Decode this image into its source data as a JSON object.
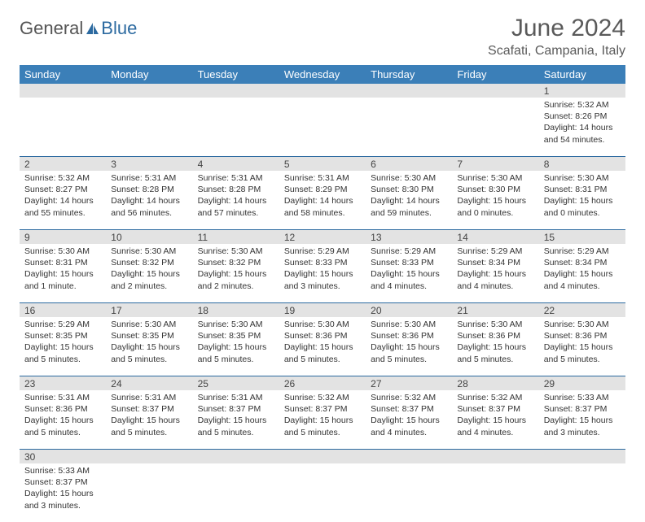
{
  "colors": {
    "header_bar": "#3b7fb8",
    "header_text": "#ffffff",
    "daynum_bg": "#e3e3e3",
    "row_border": "#2c6aa0",
    "title_color": "#5a5a5a",
    "logo_gray": "#555555",
    "logo_blue": "#2c6aa0",
    "body_text": "#333333",
    "page_bg": "#ffffff"
  },
  "logo": {
    "text1": "General",
    "text2": "Blue"
  },
  "title": "June 2024",
  "location": "Scafati, Campania, Italy",
  "weekdays": [
    "Sunday",
    "Monday",
    "Tuesday",
    "Wednesday",
    "Thursday",
    "Friday",
    "Saturday"
  ],
  "weeks": [
    [
      null,
      null,
      null,
      null,
      null,
      null,
      {
        "n": "1",
        "sr": "Sunrise: 5:32 AM",
        "ss": "Sunset: 8:26 PM",
        "d1": "Daylight: 14 hours",
        "d2": "and 54 minutes."
      }
    ],
    [
      {
        "n": "2",
        "sr": "Sunrise: 5:32 AM",
        "ss": "Sunset: 8:27 PM",
        "d1": "Daylight: 14 hours",
        "d2": "and 55 minutes."
      },
      {
        "n": "3",
        "sr": "Sunrise: 5:31 AM",
        "ss": "Sunset: 8:28 PM",
        "d1": "Daylight: 14 hours",
        "d2": "and 56 minutes."
      },
      {
        "n": "4",
        "sr": "Sunrise: 5:31 AM",
        "ss": "Sunset: 8:28 PM",
        "d1": "Daylight: 14 hours",
        "d2": "and 57 minutes."
      },
      {
        "n": "5",
        "sr": "Sunrise: 5:31 AM",
        "ss": "Sunset: 8:29 PM",
        "d1": "Daylight: 14 hours",
        "d2": "and 58 minutes."
      },
      {
        "n": "6",
        "sr": "Sunrise: 5:30 AM",
        "ss": "Sunset: 8:30 PM",
        "d1": "Daylight: 14 hours",
        "d2": "and 59 minutes."
      },
      {
        "n": "7",
        "sr": "Sunrise: 5:30 AM",
        "ss": "Sunset: 8:30 PM",
        "d1": "Daylight: 15 hours",
        "d2": "and 0 minutes."
      },
      {
        "n": "8",
        "sr": "Sunrise: 5:30 AM",
        "ss": "Sunset: 8:31 PM",
        "d1": "Daylight: 15 hours",
        "d2": "and 0 minutes."
      }
    ],
    [
      {
        "n": "9",
        "sr": "Sunrise: 5:30 AM",
        "ss": "Sunset: 8:31 PM",
        "d1": "Daylight: 15 hours",
        "d2": "and 1 minute."
      },
      {
        "n": "10",
        "sr": "Sunrise: 5:30 AM",
        "ss": "Sunset: 8:32 PM",
        "d1": "Daylight: 15 hours",
        "d2": "and 2 minutes."
      },
      {
        "n": "11",
        "sr": "Sunrise: 5:30 AM",
        "ss": "Sunset: 8:32 PM",
        "d1": "Daylight: 15 hours",
        "d2": "and 2 minutes."
      },
      {
        "n": "12",
        "sr": "Sunrise: 5:29 AM",
        "ss": "Sunset: 8:33 PM",
        "d1": "Daylight: 15 hours",
        "d2": "and 3 minutes."
      },
      {
        "n": "13",
        "sr": "Sunrise: 5:29 AM",
        "ss": "Sunset: 8:33 PM",
        "d1": "Daylight: 15 hours",
        "d2": "and 4 minutes."
      },
      {
        "n": "14",
        "sr": "Sunrise: 5:29 AM",
        "ss": "Sunset: 8:34 PM",
        "d1": "Daylight: 15 hours",
        "d2": "and 4 minutes."
      },
      {
        "n": "15",
        "sr": "Sunrise: 5:29 AM",
        "ss": "Sunset: 8:34 PM",
        "d1": "Daylight: 15 hours",
        "d2": "and 4 minutes."
      }
    ],
    [
      {
        "n": "16",
        "sr": "Sunrise: 5:29 AM",
        "ss": "Sunset: 8:35 PM",
        "d1": "Daylight: 15 hours",
        "d2": "and 5 minutes."
      },
      {
        "n": "17",
        "sr": "Sunrise: 5:30 AM",
        "ss": "Sunset: 8:35 PM",
        "d1": "Daylight: 15 hours",
        "d2": "and 5 minutes."
      },
      {
        "n": "18",
        "sr": "Sunrise: 5:30 AM",
        "ss": "Sunset: 8:35 PM",
        "d1": "Daylight: 15 hours",
        "d2": "and 5 minutes."
      },
      {
        "n": "19",
        "sr": "Sunrise: 5:30 AM",
        "ss": "Sunset: 8:36 PM",
        "d1": "Daylight: 15 hours",
        "d2": "and 5 minutes."
      },
      {
        "n": "20",
        "sr": "Sunrise: 5:30 AM",
        "ss": "Sunset: 8:36 PM",
        "d1": "Daylight: 15 hours",
        "d2": "and 5 minutes."
      },
      {
        "n": "21",
        "sr": "Sunrise: 5:30 AM",
        "ss": "Sunset: 8:36 PM",
        "d1": "Daylight: 15 hours",
        "d2": "and 5 minutes."
      },
      {
        "n": "22",
        "sr": "Sunrise: 5:30 AM",
        "ss": "Sunset: 8:36 PM",
        "d1": "Daylight: 15 hours",
        "d2": "and 5 minutes."
      }
    ],
    [
      {
        "n": "23",
        "sr": "Sunrise: 5:31 AM",
        "ss": "Sunset: 8:36 PM",
        "d1": "Daylight: 15 hours",
        "d2": "and 5 minutes."
      },
      {
        "n": "24",
        "sr": "Sunrise: 5:31 AM",
        "ss": "Sunset: 8:37 PM",
        "d1": "Daylight: 15 hours",
        "d2": "and 5 minutes."
      },
      {
        "n": "25",
        "sr": "Sunrise: 5:31 AM",
        "ss": "Sunset: 8:37 PM",
        "d1": "Daylight: 15 hours",
        "d2": "and 5 minutes."
      },
      {
        "n": "26",
        "sr": "Sunrise: 5:32 AM",
        "ss": "Sunset: 8:37 PM",
        "d1": "Daylight: 15 hours",
        "d2": "and 5 minutes."
      },
      {
        "n": "27",
        "sr": "Sunrise: 5:32 AM",
        "ss": "Sunset: 8:37 PM",
        "d1": "Daylight: 15 hours",
        "d2": "and 4 minutes."
      },
      {
        "n": "28",
        "sr": "Sunrise: 5:32 AM",
        "ss": "Sunset: 8:37 PM",
        "d1": "Daylight: 15 hours",
        "d2": "and 4 minutes."
      },
      {
        "n": "29",
        "sr": "Sunrise: 5:33 AM",
        "ss": "Sunset: 8:37 PM",
        "d1": "Daylight: 15 hours",
        "d2": "and 3 minutes."
      }
    ],
    [
      {
        "n": "30",
        "sr": "Sunrise: 5:33 AM",
        "ss": "Sunset: 8:37 PM",
        "d1": "Daylight: 15 hours",
        "d2": "and 3 minutes."
      },
      null,
      null,
      null,
      null,
      null,
      null
    ]
  ]
}
